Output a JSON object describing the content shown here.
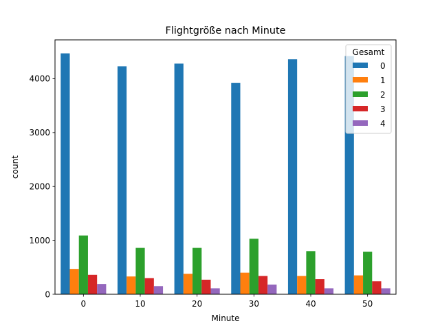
{
  "chart_data": {
    "type": "bar",
    "title": "Flightgröße nach Minute",
    "xlabel": "Minute",
    "ylabel": "count",
    "categories": [
      "0",
      "10",
      "20",
      "30",
      "40",
      "50"
    ],
    "ylim": [
      0,
      4720
    ],
    "yticks": [
      0,
      1000,
      2000,
      3000,
      4000
    ],
    "grid": false,
    "legend": {
      "title": "Gesamt",
      "placement": "top-right"
    },
    "series": [
      {
        "name": "0",
        "color": "#1f77b4",
        "values": [
          4470,
          4230,
          4280,
          3920,
          4360,
          4420
        ]
      },
      {
        "name": "1",
        "color": "#ff7f0e",
        "values": [
          470,
          330,
          380,
          400,
          340,
          350
        ]
      },
      {
        "name": "2",
        "color": "#2ca02c",
        "values": [
          1090,
          860,
          860,
          1030,
          800,
          790
        ]
      },
      {
        "name": "3",
        "color": "#d62728",
        "values": [
          360,
          300,
          270,
          340,
          280,
          240
        ]
      },
      {
        "name": "4",
        "color": "#9467bd",
        "values": [
          190,
          150,
          110,
          180,
          110,
          110
        ]
      }
    ]
  }
}
